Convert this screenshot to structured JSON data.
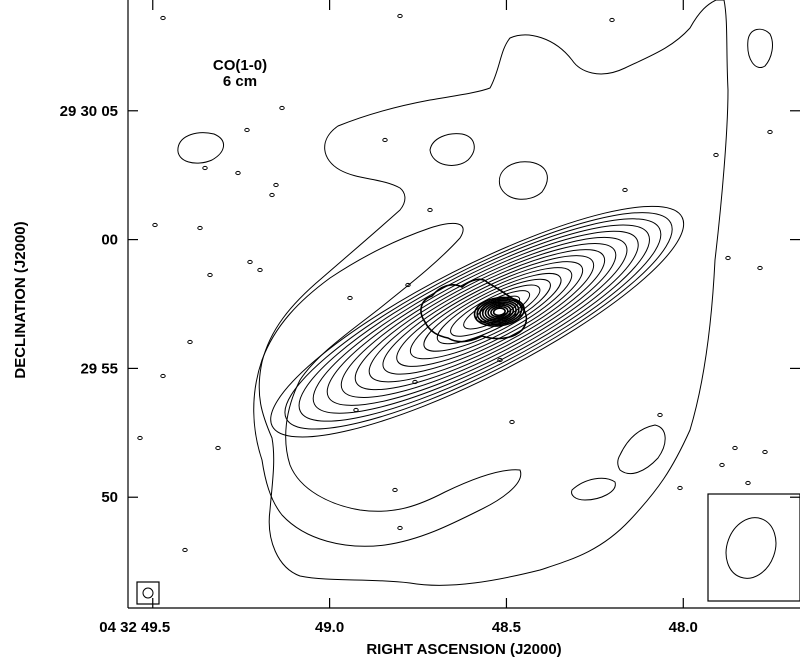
{
  "chart_data": {
    "type": "contour",
    "annotation_lines": [
      "CO(1-0)",
      "6 cm"
    ],
    "xlabel": "RIGHT ASCENSION (J2000)",
    "ylabel": "DECLINATION (J2000)",
    "x_ticks": [
      "04 32 49.5",
      "49.0",
      "48.5",
      "48.0"
    ],
    "y_ticks": [
      "29 30 05",
      "00",
      "29 55",
      "50"
    ],
    "x_tick_values": [
      49.5,
      49.0,
      48.5,
      48.0
    ],
    "y_tick_values": [
      5,
      0,
      -5,
      -10
    ],
    "xlim": [
      49.57,
      47.67
    ],
    "ylim": [
      -14.3,
      9.3
    ],
    "co_peak": {
      "ra_s": 48.54,
      "dec": -2.8
    },
    "co_contour_level_count": 16,
    "continuum_peak": {
      "ra_s": 48.52,
      "dec": -2.8
    },
    "continuum_contour_level_count": 8,
    "beam_insets": [
      "CO(1-0) beam",
      "6 cm beam"
    ]
  }
}
